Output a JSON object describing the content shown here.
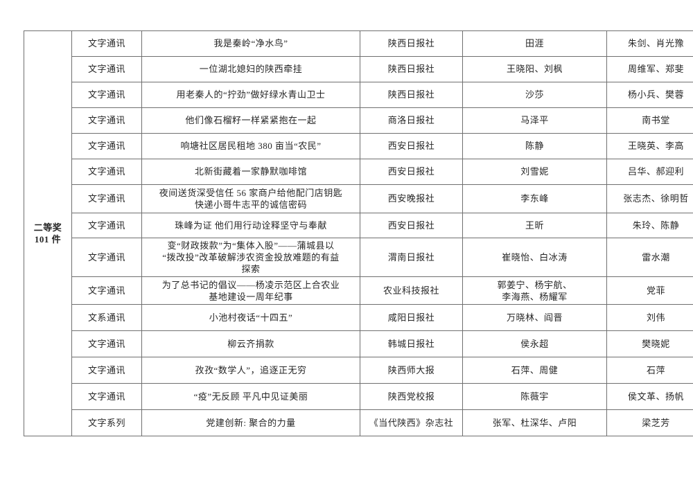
{
  "colors": {
    "page_background": "#ffffff",
    "text": "#262626",
    "table_border": "#6f6f6f"
  },
  "table": {
    "award_label": {
      "line1": "二等奖",
      "line2": "101 件"
    },
    "rows": [
      {
        "category": "文字通讯",
        "title": "我是秦岭“净水鸟”",
        "organization": "陕西日报社",
        "authors": "田涯",
        "editors": "朱剑、肖光豫"
      },
      {
        "category": "文字通讯",
        "title": "一位湖北媳妇的陕西牵挂",
        "organization": "陕西日报社",
        "authors": "王晓阳、刘枫",
        "editors": "周维军、郑斐"
      },
      {
        "category": "文字通讯",
        "title": "用老秦人的“拧劲”做好绿水青山卫士",
        "organization": "陕西日报社",
        "authors": "沙莎",
        "editors": "杨小兵、樊蓉"
      },
      {
        "category": "文字通讯",
        "title": "他们像石榴籽一样紧紧抱在一起",
        "organization": "商洛日报社",
        "authors": "马泽平",
        "editors": "南书堂"
      },
      {
        "category": "文字通讯",
        "title": "响塘社区居民租地 380 亩当“农民”",
        "organization": "西安日报社",
        "authors": "陈静",
        "editors": "王晓英、李高"
      },
      {
        "category": "文字通讯",
        "title": "北新街藏着一家静默咖啡馆",
        "organization": "西安日报社",
        "authors": "刘雪妮",
        "editors": "吕华、郝迎利"
      },
      {
        "category": "文字通讯",
        "title": "夜间送货深受信任 56 家商户给他配门店钥匙\n快递小哥牛志平的诚信密码",
        "organization": "西安晚报社",
        "authors": "李东峰",
        "editors": "张志杰、徐明哲"
      },
      {
        "category": "文字通讯",
        "title": "珠峰为证 他们用行动诠释坚守与奉献",
        "organization": "西安日报社",
        "authors": "王昕",
        "editors": "朱玲、陈静"
      },
      {
        "category": "文字通讯",
        "title": "变“财政拨款”为“集体入股”——蒲城县以\n“拨改投”改革破解涉农资金投放难题的有益\n探索",
        "organization": "渭南日报社",
        "authors": "崔晓怡、白冰涛",
        "editors": "雷水潮"
      },
      {
        "category": "文字通讯",
        "title": "为了总书记的倡议——杨凌示范区上合农业\n基地建设一周年纪事",
        "organization": "农业科技报社",
        "authors": "郭姜宁、杨宇航、\n李海燕、杨耀军",
        "editors": "党菲"
      },
      {
        "category": "文系通讯",
        "title": "小池村夜话“十四五”",
        "organization": "咸阳日报社",
        "authors": "万晓林、阎晋",
        "editors": "刘伟"
      },
      {
        "category": "文字通讯",
        "title": "柳云齐捐款",
        "organization": "韩城日报社",
        "authors": "侯永超",
        "editors": "樊晓妮"
      },
      {
        "category": "文字通讯",
        "title": "孜孜“数学人”，追逐正无穷",
        "organization": "陕西师大报",
        "authors": "石萍、周健",
        "editors": "石萍"
      },
      {
        "category": "文字通讯",
        "title": "“疫”无反顾 平凡中见证美丽",
        "organization": "陕西党校报",
        "authors": "陈薇宇",
        "editors": "侯文革、扬帆"
      },
      {
        "category": "文字系列",
        "title": "党建创新: 聚合的力量",
        "organization": "《当代陕西》杂志社",
        "authors": "张军、杜深华、卢阳",
        "editors": "梁芝芳"
      }
    ]
  }
}
